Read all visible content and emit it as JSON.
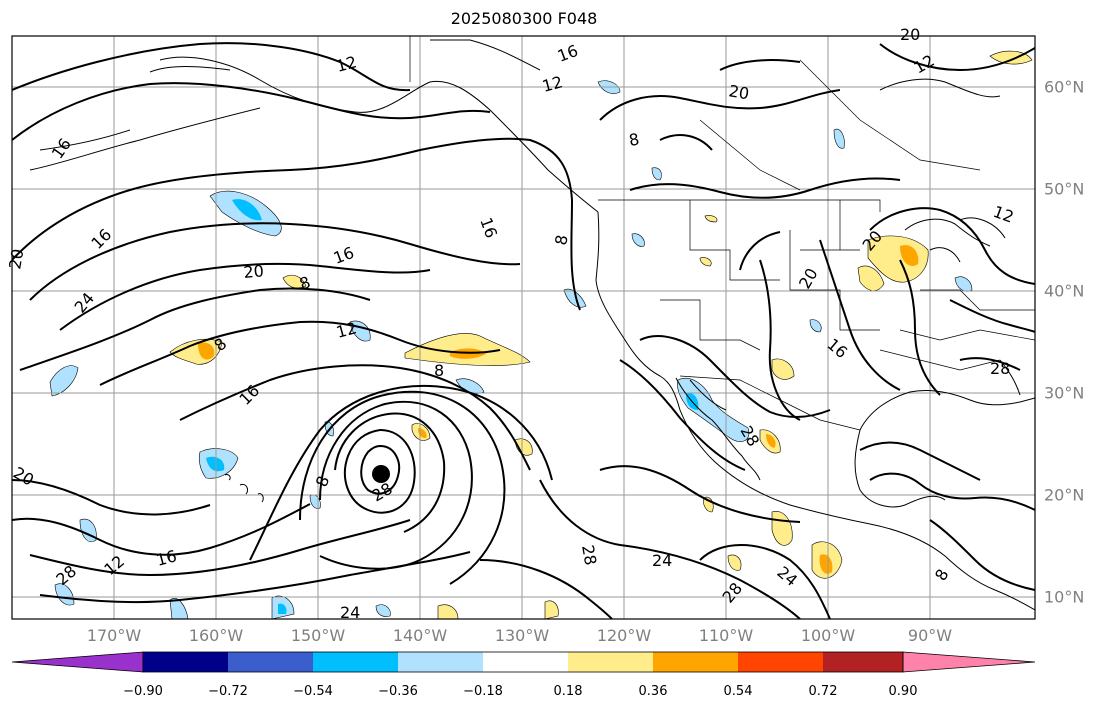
{
  "title": "2025080300 F048",
  "lon_labels": [
    "170°W",
    "160°W",
    "150°W",
    "140°W",
    "130°W",
    "120°W",
    "110°W",
    "100°W",
    "90°W"
  ],
  "lat_labels": [
    "60°N",
    "50°N",
    "40°N",
    "30°N",
    "20°N",
    "10°N"
  ],
  "colorbar": {
    "colors": [
      "#9932cc",
      "#00008b",
      "#3a5fcd",
      "#00bfff",
      "#b0e2ff",
      "#ffffff",
      "#ffec8b",
      "#ffa500",
      "#ff4500",
      "#b22222",
      "#ff82ab"
    ],
    "tick_labels": [
      "−0.90",
      "−0.72",
      "−0.54",
      "−0.36",
      "−0.18",
      "0.18",
      "0.36",
      "0.54",
      "0.72",
      "0.90"
    ]
  },
  "contour_labels": [
    "12",
    "16",
    "12",
    "20",
    "8",
    "16",
    "12",
    "16",
    "16",
    "20",
    "24",
    "20",
    "20",
    "8",
    "8",
    "12",
    "8",
    "16",
    "8",
    "20",
    "16",
    "28",
    "20",
    "24",
    "16",
    "12",
    "28",
    "8",
    "28",
    "24",
    "24",
    "28",
    "28",
    "12",
    "16",
    "8",
    "28",
    "20"
  ],
  "storm_marker": "hurricane-center"
}
